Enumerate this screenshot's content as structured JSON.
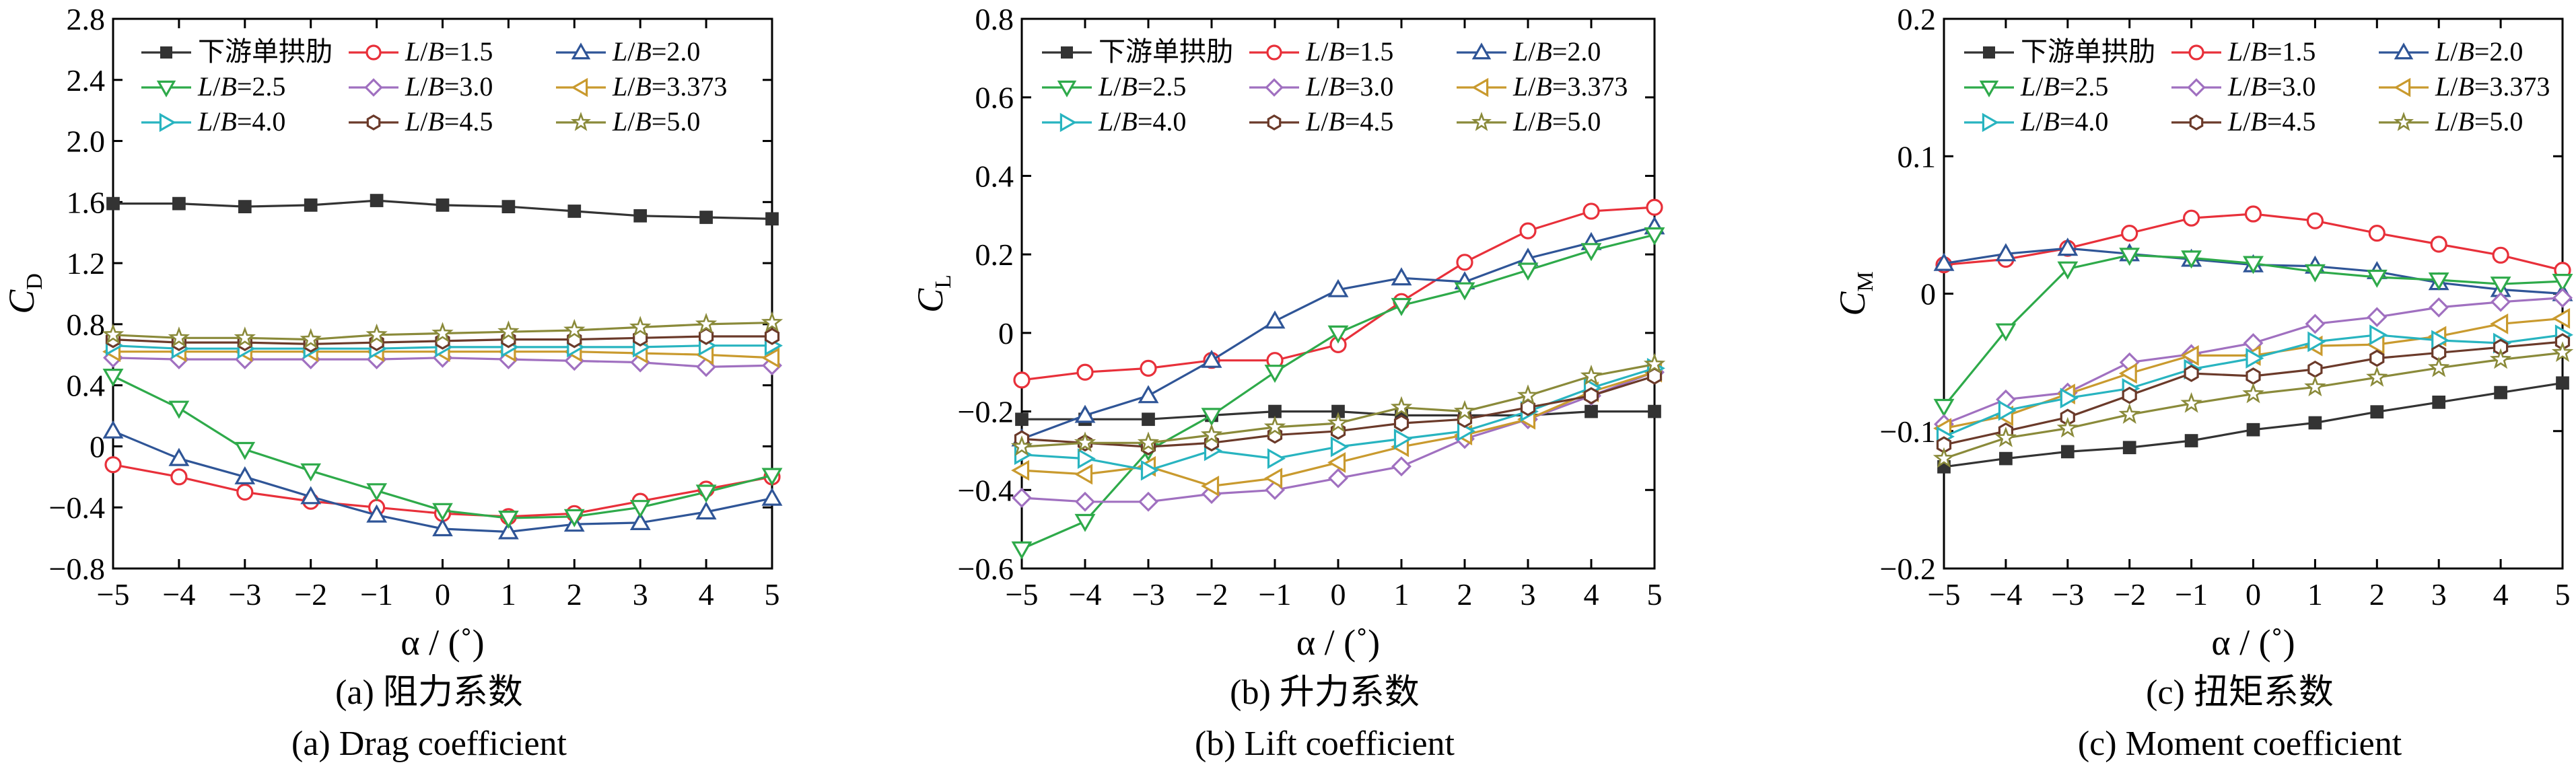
{
  "colors": {
    "s0": "#333333",
    "s1": "#e8303a",
    "s2": "#2f5597",
    "s3": "#2eaa4a",
    "s4": "#a070c0",
    "s5": "#c99a2e",
    "s6": "#28b4c0",
    "s7": "#6b3a2a",
    "s8": "#8a8a3a"
  },
  "chart_data": [
    {
      "type": "line",
      "panel": "a",
      "caption_cn": "(a)  阻力系数",
      "caption_en": "(a)  Drag coefficient",
      "ylabel_main": "C",
      "ylabel_sub": "D",
      "xlabel": "α / (˚)",
      "xlim": [
        -5,
        5
      ],
      "ylim": [
        -0.8,
        2.8
      ],
      "xticks": [
        "−5",
        "−4",
        "−3",
        "−2",
        "−1",
        "0",
        "1",
        "2",
        "3",
        "4",
        "5"
      ],
      "yticks": [
        {
          "v": 2.8,
          "t": "2.8"
        },
        {
          "v": 2.4,
          "t": "2.4"
        },
        {
          "v": 2.0,
          "t": "2.0"
        },
        {
          "v": 1.6,
          "t": "1.6"
        },
        {
          "v": 1.2,
          "t": "1.2"
        },
        {
          "v": 0.8,
          "t": "0.8"
        },
        {
          "v": 0.4,
          "t": "0.4"
        },
        {
          "v": 0,
          "t": "0"
        },
        {
          "v": -0.4,
          "t": "−0.4"
        },
        {
          "v": -0.8,
          "t": "−0.8"
        }
      ],
      "x": [
        -5,
        -4,
        -3,
        -2,
        -1,
        0,
        1,
        2,
        3,
        4,
        5
      ],
      "series": [
        {
          "name": "下游单拱肋",
          "values": [
            1.59,
            1.59,
            1.57,
            1.58,
            1.61,
            1.58,
            1.57,
            1.54,
            1.51,
            1.5,
            1.49
          ]
        },
        {
          "name": "L/B=1.5",
          "values": [
            -0.12,
            -0.2,
            -0.3,
            -0.36,
            -0.4,
            -0.44,
            -0.46,
            -0.44,
            -0.36,
            -0.28,
            -0.2
          ]
        },
        {
          "name": "L/B=2.0",
          "values": [
            0.1,
            -0.08,
            -0.2,
            -0.33,
            -0.45,
            -0.54,
            -0.56,
            -0.51,
            -0.5,
            -0.43,
            -0.34
          ]
        },
        {
          "name": "L/B=2.5",
          "values": [
            0.46,
            0.25,
            -0.02,
            -0.16,
            -0.29,
            -0.42,
            -0.47,
            -0.46,
            -0.4,
            -0.3,
            -0.19
          ]
        },
        {
          "name": "L/B=3.0",
          "values": [
            0.58,
            0.57,
            0.57,
            0.57,
            0.57,
            0.58,
            0.57,
            0.56,
            0.55,
            0.52,
            0.53
          ]
        },
        {
          "name": "L/B=3.373",
          "values": [
            0.62,
            0.62,
            0.62,
            0.62,
            0.62,
            0.62,
            0.62,
            0.62,
            0.61,
            0.6,
            0.58
          ]
        },
        {
          "name": "L/B=4.0",
          "values": [
            0.66,
            0.64,
            0.64,
            0.64,
            0.64,
            0.65,
            0.65,
            0.65,
            0.65,
            0.66,
            0.66
          ]
        },
        {
          "name": "L/B=4.5",
          "values": [
            0.7,
            0.68,
            0.68,
            0.67,
            0.68,
            0.69,
            0.7,
            0.7,
            0.71,
            0.72,
            0.72
          ]
        },
        {
          "name": "L/B=5.0",
          "values": [
            0.73,
            0.71,
            0.71,
            0.7,
            0.73,
            0.74,
            0.75,
            0.76,
            0.78,
            0.8,
            0.81
          ]
        }
      ]
    },
    {
      "type": "line",
      "panel": "b",
      "caption_cn": "(b)  升力系数",
      "caption_en": "(b)  Lift coefficient",
      "ylabel_main": "C",
      "ylabel_sub": "L",
      "xlabel": "α / (˚)",
      "xlim": [
        -5,
        5
      ],
      "ylim": [
        -0.6,
        0.8
      ],
      "xticks": [
        "−5",
        "−4",
        "−3",
        "−2",
        "−1",
        "0",
        "1",
        "2",
        "3",
        "4",
        "5"
      ],
      "yticks": [
        {
          "v": 0.8,
          "t": "0.8"
        },
        {
          "v": 0.6,
          "t": "0.6"
        },
        {
          "v": 0.4,
          "t": "0.4"
        },
        {
          "v": 0.2,
          "t": "0.2"
        },
        {
          "v": 0,
          "t": "0"
        },
        {
          "v": -0.2,
          "t": "−0.2"
        },
        {
          "v": -0.4,
          "t": "−0.4"
        },
        {
          "v": -0.6,
          "t": "−0.6"
        }
      ],
      "x": [
        -5,
        -4,
        -3,
        -2,
        -1,
        0,
        1,
        2,
        3,
        4,
        5
      ],
      "series": [
        {
          "name": "下游单拱肋",
          "values": [
            -0.22,
            -0.22,
            -0.22,
            -0.21,
            -0.2,
            -0.2,
            -0.21,
            -0.21,
            -0.21,
            -0.2,
            -0.2
          ]
        },
        {
          "name": "L/B=1.5",
          "values": [
            -0.12,
            -0.1,
            -0.09,
            -0.07,
            -0.07,
            -0.03,
            0.08,
            0.18,
            0.26,
            0.31,
            0.32
          ]
        },
        {
          "name": "L/B=2.0",
          "values": [
            -0.27,
            -0.21,
            -0.16,
            -0.07,
            0.03,
            0.11,
            0.14,
            0.13,
            0.19,
            0.23,
            0.27
          ]
        },
        {
          "name": "L/B=2.5",
          "values": [
            -0.55,
            -0.48,
            -0.3,
            -0.21,
            -0.1,
            0.0,
            0.07,
            0.11,
            0.16,
            0.21,
            0.25
          ]
        },
        {
          "name": "L/B=3.0",
          "values": [
            -0.42,
            -0.43,
            -0.43,
            -0.41,
            -0.4,
            -0.37,
            -0.34,
            -0.27,
            -0.22,
            -0.16,
            -0.1
          ]
        },
        {
          "name": "L/B=3.373",
          "values": [
            -0.35,
            -0.36,
            -0.34,
            -0.39,
            -0.37,
            -0.33,
            -0.29,
            -0.26,
            -0.22,
            -0.15,
            -0.1
          ]
        },
        {
          "name": "L/B=4.0",
          "values": [
            -0.31,
            -0.32,
            -0.35,
            -0.3,
            -0.32,
            -0.29,
            -0.27,
            -0.25,
            -0.2,
            -0.14,
            -0.09
          ]
        },
        {
          "name": "L/B=4.5",
          "values": [
            -0.27,
            -0.28,
            -0.29,
            -0.28,
            -0.26,
            -0.25,
            -0.23,
            -0.22,
            -0.19,
            -0.16,
            -0.11
          ]
        },
        {
          "name": "L/B=5.0",
          "values": [
            -0.29,
            -0.28,
            -0.28,
            -0.26,
            -0.24,
            -0.23,
            -0.19,
            -0.2,
            -0.16,
            -0.11,
            -0.08
          ]
        }
      ]
    },
    {
      "type": "line",
      "panel": "c",
      "caption_cn": "(c)  扭矩系数",
      "caption_en": "(c)  Moment coefficient",
      "ylabel_main": "C",
      "ylabel_sub": "M",
      "xlabel": "α / (˚)",
      "xlim": [
        -5,
        5
      ],
      "ylim": [
        -0.2,
        0.2
      ],
      "xticks": [
        "−5",
        "−4",
        "−3",
        "−2",
        "−1",
        "0",
        "1",
        "2",
        "3",
        "4",
        "5"
      ],
      "yticks": [
        {
          "v": 0.2,
          "t": "0.2"
        },
        {
          "v": 0.1,
          "t": "0.1"
        },
        {
          "v": 0,
          "t": "0"
        },
        {
          "v": -0.1,
          "t": "−0.1"
        },
        {
          "v": -0.2,
          "t": "−0.2"
        }
      ],
      "x": [
        -5,
        -4,
        -3,
        -2,
        -1,
        0,
        1,
        2,
        3,
        4,
        5
      ],
      "series": [
        {
          "name": "下游单拱肋",
          "values": [
            -0.126,
            -0.12,
            -0.115,
            -0.112,
            -0.107,
            -0.099,
            -0.094,
            -0.086,
            -0.079,
            -0.072,
            -0.065
          ]
        },
        {
          "name": "L/B=1.5",
          "values": [
            0.021,
            0.025,
            0.033,
            0.044,
            0.055,
            0.058,
            0.053,
            0.044,
            0.036,
            0.028,
            0.017
          ]
        },
        {
          "name": "L/B=2.0",
          "values": [
            0.022,
            0.029,
            0.033,
            0.029,
            0.025,
            0.021,
            0.02,
            0.016,
            0.008,
            0.003,
            0.0
          ]
        },
        {
          "name": "L/B=2.5",
          "values": [
            -0.082,
            -0.027,
            0.018,
            0.028,
            0.026,
            0.022,
            0.016,
            0.012,
            0.01,
            0.007,
            0.009
          ]
        },
        {
          "name": "L/B=3.0",
          "values": [
            -0.095,
            -0.077,
            -0.072,
            -0.05,
            -0.044,
            -0.036,
            -0.022,
            -0.017,
            -0.01,
            -0.006,
            -0.003
          ]
        },
        {
          "name": "L/B=3.373",
          "values": [
            -0.098,
            -0.089,
            -0.073,
            -0.058,
            -0.045,
            -0.045,
            -0.038,
            -0.037,
            -0.031,
            -0.022,
            -0.018
          ]
        },
        {
          "name": "L/B=4.0",
          "values": [
            -0.104,
            -0.085,
            -0.076,
            -0.069,
            -0.055,
            -0.047,
            -0.035,
            -0.03,
            -0.034,
            -0.036,
            -0.03
          ]
        },
        {
          "name": "L/B=4.5",
          "values": [
            -0.11,
            -0.1,
            -0.09,
            -0.074,
            -0.058,
            -0.06,
            -0.055,
            -0.047,
            -0.043,
            -0.039,
            -0.035
          ]
        },
        {
          "name": "L/B=5.0",
          "values": [
            -0.12,
            -0.105,
            -0.098,
            -0.088,
            -0.08,
            -0.073,
            -0.068,
            -0.061,
            -0.054,
            -0.048,
            -0.043
          ]
        }
      ]
    }
  ]
}
